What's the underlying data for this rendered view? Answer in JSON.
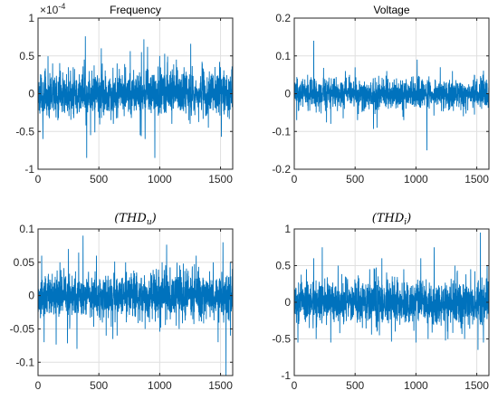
{
  "chart_data": [
    {
      "type": "line",
      "title": "Frequency",
      "title_math": false,
      "exponent_label": "×10^-4",
      "color": "#0072BD",
      "xlim": [
        0,
        1600
      ],
      "ylim": [
        -1,
        1
      ],
      "xticks": [
        0,
        500,
        1000,
        1500
      ],
      "xtick_labels": [
        "0",
        "500",
        "1000",
        "1500"
      ],
      "yticks": [
        -1,
        -0.5,
        0,
        0.5,
        1
      ],
      "ytick_labels": [
        "-1",
        "-0.5",
        "0",
        "0.5",
        "1"
      ],
      "grid": true,
      "noise_std": 0.14,
      "spikes": [
        [
          40,
          -0.6
        ],
        [
          120,
          0.4
        ],
        [
          250,
          0.35
        ],
        [
          380,
          0.45
        ],
        [
          400,
          -0.85
        ],
        [
          420,
          0.3
        ],
        [
          520,
          0.6
        ],
        [
          600,
          -0.35
        ],
        [
          650,
          0.4
        ],
        [
          720,
          0.35
        ],
        [
          840,
          -0.55
        ],
        [
          850,
          0.55
        ],
        [
          870,
          0.72
        ],
        [
          880,
          -0.6
        ],
        [
          900,
          0.62
        ],
        [
          960,
          -0.85
        ],
        [
          1000,
          0.5
        ],
        [
          1100,
          -0.4
        ],
        [
          1200,
          0.35
        ],
        [
          1250,
          -0.4
        ],
        [
          1350,
          0.4
        ],
        [
          1400,
          -0.45
        ],
        [
          1500,
          0.35
        ]
      ],
      "n": 1600,
      "seed": 11
    },
    {
      "type": "line",
      "title": "Voltage",
      "title_math": false,
      "color": "#0072BD",
      "xlim": [
        0,
        1600
      ],
      "ylim": [
        -0.2,
        0.2
      ],
      "xticks": [
        0,
        500,
        1000,
        1500
      ],
      "xtick_labels": [
        "0",
        "500",
        "1000",
        "1500"
      ],
      "yticks": [
        -0.2,
        -0.1,
        0,
        0.1,
        0.2
      ],
      "ytick_labels": [
        "-0.2",
        "-0.1",
        "0",
        "0.1",
        "0.2"
      ],
      "grid": true,
      "noise_std": 0.018,
      "spikes": [
        [
          20,
          -0.07
        ],
        [
          110,
          0.05
        ],
        [
          160,
          0.14
        ],
        [
          180,
          -0.05
        ],
        [
          300,
          -0.08
        ],
        [
          420,
          0.06
        ],
        [
          520,
          -0.07
        ],
        [
          680,
          -0.09
        ],
        [
          760,
          0.06
        ],
        [
          900,
          -0.07
        ],
        [
          1010,
          0.09
        ],
        [
          1090,
          -0.15
        ],
        [
          1200,
          0.07
        ],
        [
          1300,
          0.06
        ],
        [
          1390,
          -0.06
        ],
        [
          1480,
          0.05
        ],
        [
          1550,
          0.05
        ]
      ],
      "n": 1600,
      "seed": 23
    },
    {
      "type": "line",
      "title": "(THD_u)",
      "title_math": true,
      "title_main": "(THD",
      "title_sub": "u",
      "title_close": ")",
      "color": "#0072BD",
      "xlim": [
        0,
        1600
      ],
      "ylim": [
        -0.12,
        0.1
      ],
      "xticks": [
        0,
        500,
        1000,
        1500
      ],
      "xtick_labels": [
        "0",
        "500",
        "1000",
        "1500"
      ],
      "yticks": [
        -0.1,
        -0.05,
        0,
        0.05,
        0.1
      ],
      "ytick_labels": [
        "-0.1",
        "-0.05",
        "0",
        "0.05",
        "0.1"
      ],
      "grid": true,
      "noise_std": 0.016,
      "spikes": [
        [
          30,
          0.06
        ],
        [
          50,
          -0.07
        ],
        [
          180,
          0.05
        ],
        [
          250,
          0.07
        ],
        [
          320,
          -0.08
        ],
        [
          370,
          0.09
        ],
        [
          480,
          0.06
        ],
        [
          560,
          -0.06
        ],
        [
          650,
          -0.06
        ],
        [
          720,
          0.05
        ],
        [
          880,
          -0.05
        ],
        [
          1020,
          0.05
        ],
        [
          1160,
          -0.05
        ],
        [
          1300,
          0.06
        ],
        [
          1440,
          0.05
        ],
        [
          1480,
          -0.07
        ],
        [
          1520,
          0.08
        ],
        [
          1545,
          -0.12
        ],
        [
          1580,
          0.05
        ]
      ],
      "n": 1600,
      "seed": 37
    },
    {
      "type": "line",
      "title": "(THD_i)",
      "title_math": true,
      "title_main": "(THD",
      "title_sub": "i",
      "title_close": ")",
      "color": "#0072BD",
      "xlim": [
        0,
        1600
      ],
      "ylim": [
        -1,
        1
      ],
      "xticks": [
        0,
        500,
        1000,
        1500
      ],
      "xtick_labels": [
        "0",
        "500",
        "1000",
        "1500"
      ],
      "yticks": [
        -1,
        -0.5,
        0,
        0.5,
        1
      ],
      "ytick_labels": [
        "-1",
        "-0.5",
        "0",
        "0.5",
        "1"
      ],
      "grid": true,
      "noise_std": 0.14,
      "spikes": [
        [
          30,
          -0.55
        ],
        [
          100,
          0.45
        ],
        [
          160,
          0.6
        ],
        [
          180,
          -0.5
        ],
        [
          230,
          0.75
        ],
        [
          300,
          -0.55
        ],
        [
          360,
          0.5
        ],
        [
          420,
          0.35
        ],
        [
          560,
          -0.35
        ],
        [
          620,
          0.45
        ],
        [
          700,
          -0.45
        ],
        [
          720,
          0.6
        ],
        [
          830,
          -0.4
        ],
        [
          900,
          0.45
        ],
        [
          1000,
          -0.55
        ],
        [
          1040,
          0.6
        ],
        [
          1100,
          -0.5
        ],
        [
          1150,
          0.75
        ],
        [
          1260,
          -0.4
        ],
        [
          1320,
          0.5
        ],
        [
          1400,
          -0.5
        ],
        [
          1450,
          0.45
        ],
        [
          1510,
          -0.65
        ],
        [
          1530,
          0.95
        ],
        [
          1555,
          -0.55
        ],
        [
          1585,
          0.5
        ]
      ],
      "n": 1600,
      "seed": 53
    }
  ]
}
